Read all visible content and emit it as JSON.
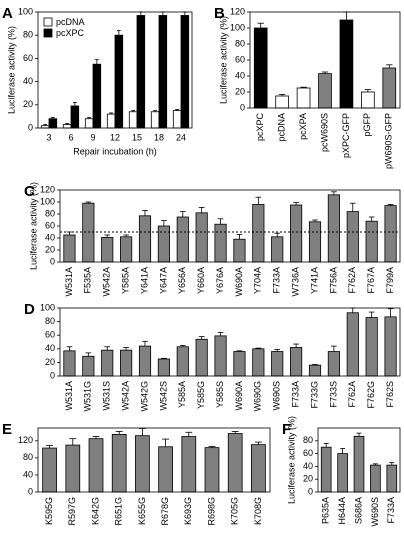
{
  "chart_data": [
    {
      "type": "bar",
      "panel": "A",
      "ylabel": "Luciferase activity (%)",
      "xlabel": "Repair incubation (h)",
      "ylim": [
        0,
        100
      ],
      "yticks": [
        0,
        20,
        40,
        60,
        80,
        100
      ],
      "legend": "upper-left",
      "categories": [
        "3",
        "6",
        "9",
        "12",
        "15",
        "18",
        "24"
      ],
      "series": [
        {
          "name": "pcDNA",
          "color": "#ffffff",
          "values": [
            2,
            3,
            8,
            12,
            14,
            14,
            15
          ],
          "errors": [
            1,
            1,
            1,
            1,
            1,
            1,
            1
          ]
        },
        {
          "name": "pcXPC",
          "color": "#000000",
          "values": [
            8,
            19,
            55,
            80,
            97,
            97,
            97
          ],
          "errors": [
            1,
            3,
            4,
            4,
            3,
            3,
            3
          ]
        }
      ]
    },
    {
      "type": "bar",
      "panel": "B",
      "ylabel": "Luciferase activity (%)",
      "ylim": [
        0,
        120
      ],
      "yticks": [
        0,
        20,
        40,
        60,
        80,
        100,
        120
      ],
      "categories": [
        "pcXPC",
        "pcDNA",
        "pcXPA",
        "pcW690S",
        "pXPC-GFP",
        "pGFP",
        "pW690S-GFP"
      ],
      "values": [
        100,
        15,
        25,
        43,
        110,
        20,
        50
      ],
      "errors": [
        6,
        2,
        1,
        2,
        10,
        3,
        4
      ],
      "colors": [
        "#000000",
        "#ffffff",
        "#ffffff",
        "#808080",
        "#000000",
        "#ffffff",
        "#808080"
      ]
    },
    {
      "type": "bar",
      "panel": "C",
      "ylabel": "Luciferase activity (%)",
      "ylim": [
        0,
        120
      ],
      "yticks": [
        0,
        20,
        40,
        60,
        80,
        100,
        120
      ],
      "reference_line": 50,
      "categories": [
        "W531A",
        "F535A",
        "W542A",
        "Y585A",
        "Y641A",
        "Y647A",
        "Y656A",
        "Y660A",
        "Y676A",
        "W690A",
        "Y704A",
        "F733A",
        "W736A",
        "Y741A",
        "F756A",
        "F762A",
        "F767A",
        "F799A"
      ],
      "values": [
        45,
        98,
        41,
        42,
        77,
        60,
        75,
        82,
        63,
        38,
        96,
        42,
        95,
        67,
        112,
        84,
        68,
        94
      ],
      "errors": [
        5,
        2,
        4,
        3,
        9,
        9,
        9,
        9,
        9,
        8,
        12,
        6,
        4,
        3,
        5,
        14,
        7,
        2
      ],
      "color": "#808080"
    },
    {
      "type": "bar",
      "panel": "D",
      "ylim": [
        0,
        100
      ],
      "yticks": [
        0,
        20,
        40,
        60,
        80,
        100
      ],
      "categories": [
        "W531A",
        "W531G",
        "W531S",
        "W542A",
        "W542G",
        "W542S",
        "Y585A",
        "Y585G",
        "Y585S",
        "W690A",
        "W690G",
        "W690S",
        "F733A",
        "F733G",
        "F733S",
        "F762A",
        "F762G",
        "F762S"
      ],
      "values": [
        37,
        29,
        38,
        38,
        44,
        25,
        43,
        54,
        59,
        36,
        40,
        36,
        42,
        16,
        36,
        93,
        86,
        87
      ],
      "errors": [
        6,
        5,
        5,
        4,
        7,
        1,
        2,
        4,
        5,
        1,
        1,
        3,
        5,
        1,
        8,
        7,
        8,
        12
      ],
      "color": "#808080"
    },
    {
      "type": "bar",
      "panel": "E",
      "ylim": [
        0,
        150
      ],
      "yticks": [
        0,
        40,
        80,
        120
      ],
      "categories": [
        "K595G",
        "R597G",
        "K642G",
        "R651G",
        "K655G",
        "R678G",
        "K693G",
        "R698G",
        "K705G",
        "K708G"
      ],
      "values": [
        103,
        110,
        125,
        135,
        132,
        106,
        130,
        104,
        137,
        111
      ],
      "errors": [
        6,
        15,
        5,
        7,
        17,
        18,
        10,
        3,
        5,
        6
      ],
      "color": "#808080"
    },
    {
      "type": "bar",
      "panel": "F",
      "ylabel": "Luciferase activity (%)",
      "ylim": [
        0,
        100
      ],
      "yticks": [
        0,
        20,
        40,
        60,
        80
      ],
      "categories": [
        "P635A",
        "H644A",
        "S686A",
        "W690S",
        "F733A"
      ],
      "values": [
        70,
        60,
        87,
        42,
        42
      ],
      "errors": [
        6,
        8,
        5,
        2,
        4
      ],
      "color": "#808080"
    }
  ]
}
